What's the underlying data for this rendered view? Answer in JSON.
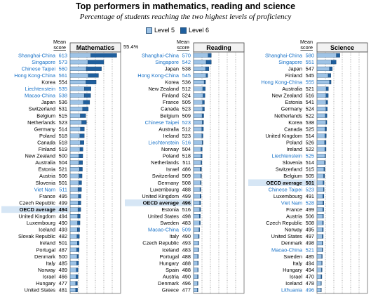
{
  "title": "Top performers in mathematics, reading and science",
  "subtitle": "Percentage of students reaching the two highest levels of proficiency",
  "legend": [
    {
      "label": "Level 5",
      "color": "#9ec3e6"
    },
    {
      "label": "Level 6",
      "color": "#1f5f9e"
    }
  ],
  "mean_header": "Mean score",
  "colors": {
    "level5": "#9ec3e6",
    "level6": "#1f5f9e",
    "highlight_text": "#1a73c8",
    "oecd_fill": "#d6e6f5"
  },
  "chart_data": [
    {
      "type": "bar",
      "title": "Mathematics",
      "annotation": "55.4%",
      "countries": [
        {
          "name": "Shanghai-China",
          "score": 613,
          "l5": 24.6,
          "l6": 30.8,
          "highlight": true
        },
        {
          "name": "Singapore",
          "score": 573,
          "l5": 21.0,
          "l6": 19.0,
          "highlight": true
        },
        {
          "name": "Chinese Taipei",
          "score": 560,
          "l5": 19.2,
          "l6": 18.0,
          "highlight": true
        },
        {
          "name": "Hong Kong-China",
          "score": 561,
          "l5": 21.4,
          "l6": 12.3,
          "highlight": true
        },
        {
          "name": "Korea",
          "score": 554,
          "l5": 18.8,
          "l6": 12.1,
          "highlight": false
        },
        {
          "name": "Liechtenstein",
          "score": 535,
          "l5": 17.0,
          "l6": 7.8,
          "highlight": true
        },
        {
          "name": "Macao-China",
          "score": 538,
          "l5": 16.8,
          "l6": 7.6,
          "highlight": true
        },
        {
          "name": "Japan",
          "score": 536,
          "l5": 15.7,
          "l6": 7.5,
          "highlight": false
        },
        {
          "name": "Switzerland",
          "score": 531,
          "l5": 14.8,
          "l6": 6.8,
          "highlight": false
        },
        {
          "name": "Belgium",
          "score": 515,
          "l5": 12.1,
          "l6": 6.4,
          "highlight": false
        },
        {
          "name": "Netherlands",
          "score": 523,
          "l5": 13.8,
          "l6": 5.5,
          "highlight": false
        },
        {
          "name": "Germany",
          "score": 514,
          "l5": 12.2,
          "l6": 4.7,
          "highlight": false
        },
        {
          "name": "Poland",
          "score": 518,
          "l5": 11.5,
          "l6": 5.3,
          "highlight": false
        },
        {
          "name": "Canada",
          "score": 518,
          "l5": 12.1,
          "l6": 4.3,
          "highlight": false
        },
        {
          "name": "Finland",
          "score": 519,
          "l5": 11.7,
          "l6": 3.5,
          "highlight": false
        },
        {
          "name": "New Zealand",
          "score": 500,
          "l5": 10.5,
          "l6": 4.5,
          "highlight": false
        },
        {
          "name": "Australia",
          "score": 504,
          "l5": 10.5,
          "l6": 4.3,
          "highlight": false
        },
        {
          "name": "Estonia",
          "score": 521,
          "l5": 11.0,
          "l6": 3.6,
          "highlight": false
        },
        {
          "name": "Austria",
          "score": 506,
          "l5": 10.5,
          "l6": 3.7,
          "highlight": false
        },
        {
          "name": "Slovenia",
          "score": 501,
          "l5": 10.3,
          "l6": 3.4,
          "highlight": false
        },
        {
          "name": "Viet Nam",
          "score": 511,
          "l5": 9.3,
          "l6": 4.2,
          "highlight": true
        },
        {
          "name": "France",
          "score": 495,
          "l5": 9.8,
          "l6": 3.1,
          "highlight": false
        },
        {
          "name": "Czech Republic",
          "score": 499,
          "l5": 9.6,
          "l6": 3.2,
          "highlight": false
        },
        {
          "name": "OECD average",
          "score": 494,
          "l5": 9.3,
          "l6": 3.3,
          "highlight": false,
          "oecd": true
        },
        {
          "name": "United Kingdom",
          "score": 494,
          "l5": 8.9,
          "l6": 3.1,
          "highlight": false
        },
        {
          "name": "Luxembourg",
          "score": 490,
          "l5": 8.8,
          "l6": 2.9,
          "highlight": false
        },
        {
          "name": "Iceland",
          "score": 493,
          "l5": 8.5,
          "l6": 2.8,
          "highlight": false
        },
        {
          "name": "Slovak Republic",
          "score": 482,
          "l5": 8.1,
          "l6": 2.9,
          "highlight": false
        },
        {
          "name": "Ireland",
          "score": 501,
          "l5": 8.5,
          "l6": 2.2,
          "highlight": false
        },
        {
          "name": "Portugal",
          "score": 487,
          "l5": 7.8,
          "l6": 2.8,
          "highlight": false
        },
        {
          "name": "Denmark",
          "score": 500,
          "l5": 8.3,
          "l6": 1.7,
          "highlight": false
        },
        {
          "name": "Italy",
          "score": 485,
          "l5": 7.8,
          "l6": 2.2,
          "highlight": false
        },
        {
          "name": "Norway",
          "score": 489,
          "l5": 7.3,
          "l6": 2.1,
          "highlight": false
        },
        {
          "name": "Israel",
          "score": 466,
          "l5": 6.9,
          "l6": 2.5,
          "highlight": false
        },
        {
          "name": "Hungary",
          "score": 477,
          "l5": 6.6,
          "l6": 2.1,
          "highlight": false
        },
        {
          "name": "United States",
          "score": 481,
          "l5": 6.6,
          "l6": 2.2,
          "highlight": false
        }
      ]
    },
    {
      "type": "bar",
      "title": "Reading",
      "countries": [
        {
          "name": "Shanghai-China",
          "score": 570,
          "l5": 17.3,
          "l6": 3.8,
          "highlight": true
        },
        {
          "name": "Singapore",
          "score": 542,
          "l5": 15.0,
          "l6": 6.1,
          "highlight": true
        },
        {
          "name": "Japan",
          "score": 538,
          "l5": 14.3,
          "l6": 3.9,
          "highlight": false
        },
        {
          "name": "Hong Kong-China",
          "score": 545,
          "l5": 14.9,
          "l6": 1.9,
          "highlight": true
        },
        {
          "name": "Korea",
          "score": 536,
          "l5": 12.6,
          "l6": 1.6,
          "highlight": false
        },
        {
          "name": "New Zealand",
          "score": 512,
          "l5": 10.9,
          "l6": 3.0,
          "highlight": false
        },
        {
          "name": "Finland",
          "score": 524,
          "l5": 11.3,
          "l6": 2.2,
          "highlight": false
        },
        {
          "name": "France",
          "score": 505,
          "l5": 10.6,
          "l6": 2.3,
          "highlight": false
        },
        {
          "name": "Canada",
          "score": 523,
          "l5": 10.8,
          "l6": 2.1,
          "highlight": false
        },
        {
          "name": "Belgium",
          "score": 509,
          "l5": 10.1,
          "l6": 2.0,
          "highlight": false
        },
        {
          "name": "Chinese Taipei",
          "score": 523,
          "l5": 10.4,
          "l6": 1.4,
          "highlight": true
        },
        {
          "name": "Australia",
          "score": 512,
          "l5": 9.8,
          "l6": 1.9,
          "highlight": false
        },
        {
          "name": "Ireland",
          "score": 523,
          "l5": 9.9,
          "l6": 1.3,
          "highlight": false
        },
        {
          "name": "Liechtenstein",
          "score": 516,
          "l5": 10.3,
          "l6": 0.9,
          "highlight": true
        },
        {
          "name": "Norway",
          "score": 504,
          "l5": 8.8,
          "l6": 1.5,
          "highlight": false
        },
        {
          "name": "Poland",
          "score": 518,
          "l5": 8.9,
          "l6": 1.3,
          "highlight": false
        },
        {
          "name": "Netherlands",
          "score": 511,
          "l5": 9.0,
          "l6": 0.9,
          "highlight": false
        },
        {
          "name": "Israel",
          "score": 486,
          "l5": 7.9,
          "l6": 1.5,
          "highlight": false
        },
        {
          "name": "Switzerland",
          "score": 509,
          "l5": 8.5,
          "l6": 0.9,
          "highlight": false
        },
        {
          "name": "Germany",
          "score": 508,
          "l5": 8.2,
          "l6": 0.9,
          "highlight": false
        },
        {
          "name": "Luxembourg",
          "score": 488,
          "l5": 7.6,
          "l6": 1.1,
          "highlight": false
        },
        {
          "name": "United Kingdom",
          "score": 499,
          "l5": 7.7,
          "l6": 1.3,
          "highlight": false
        },
        {
          "name": "OECD average",
          "score": 496,
          "l5": 7.3,
          "l6": 1.1,
          "highlight": false,
          "oecd": true
        },
        {
          "name": "Estonia",
          "score": 516,
          "l5": 7.4,
          "l6": 1.0,
          "highlight": false
        },
        {
          "name": "United States",
          "score": 498,
          "l5": 7.0,
          "l6": 1.0,
          "highlight": false
        },
        {
          "name": "Sweden",
          "score": 483,
          "l5": 7.1,
          "l6": 0.9,
          "highlight": false
        },
        {
          "name": "Macao-China",
          "score": 509,
          "l5": 6.6,
          "l6": 0.6,
          "highlight": true
        },
        {
          "name": "Italy",
          "score": 490,
          "l5": 5.9,
          "l6": 0.8,
          "highlight": false
        },
        {
          "name": "Czech Republic",
          "score": 493,
          "l5": 5.5,
          "l6": 0.6,
          "highlight": false
        },
        {
          "name": "Iceland",
          "score": 483,
          "l5": 5.3,
          "l6": 0.6,
          "highlight": false
        },
        {
          "name": "Portugal",
          "score": 488,
          "l5": 5.0,
          "l6": 0.7,
          "highlight": false
        },
        {
          "name": "Hungary",
          "score": 488,
          "l5": 5.0,
          "l6": 0.6,
          "highlight": false
        },
        {
          "name": "Spain",
          "score": 488,
          "l5": 5.0,
          "l6": 0.5,
          "highlight": false
        },
        {
          "name": "Austria",
          "score": 490,
          "l5": 4.8,
          "l6": 0.7,
          "highlight": false
        },
        {
          "name": "Denmark",
          "score": 496,
          "l5": 4.7,
          "l6": 0.6,
          "highlight": false
        },
        {
          "name": "Greece",
          "score": 477,
          "l5": 4.6,
          "l6": 0.6,
          "highlight": false
        }
      ]
    },
    {
      "type": "bar",
      "title": "Science",
      "countries": [
        {
          "name": "Shanghai-China",
          "score": 580,
          "l5": 23.0,
          "l6": 4.2,
          "highlight": true
        },
        {
          "name": "Singapore",
          "score": 551,
          "l5": 16.9,
          "l6": 5.8,
          "highlight": true
        },
        {
          "name": "Japan",
          "score": 547,
          "l5": 14.8,
          "l6": 3.4,
          "highlight": false
        },
        {
          "name": "Finland",
          "score": 545,
          "l5": 13.3,
          "l6": 3.2,
          "highlight": false
        },
        {
          "name": "Hong Kong-China",
          "score": 555,
          "l5": 14.9,
          "l6": 1.8,
          "highlight": true
        },
        {
          "name": "Australia",
          "score": 521,
          "l5": 10.9,
          "l6": 2.6,
          "highlight": false
        },
        {
          "name": "New Zealand",
          "score": 516,
          "l5": 10.7,
          "l6": 2.7,
          "highlight": false
        },
        {
          "name": "Estonia",
          "score": 541,
          "l5": 10.8,
          "l6": 1.9,
          "highlight": false
        },
        {
          "name": "Germany",
          "score": 524,
          "l5": 10.6,
          "l6": 1.6,
          "highlight": false
        },
        {
          "name": "Netherlands",
          "score": 522,
          "l5": 9.9,
          "l6": 1.9,
          "highlight": false
        },
        {
          "name": "Korea",
          "score": 538,
          "l5": 10.6,
          "l6": 1.1,
          "highlight": false
        },
        {
          "name": "Canada",
          "score": 525,
          "l5": 9.5,
          "l6": 1.8,
          "highlight": false
        },
        {
          "name": "United Kingdom",
          "score": 514,
          "l5": 9.3,
          "l6": 1.8,
          "highlight": false
        },
        {
          "name": "Poland",
          "score": 526,
          "l5": 9.1,
          "l6": 1.7,
          "highlight": false
        },
        {
          "name": "Ireland",
          "score": 522,
          "l5": 9.3,
          "l6": 1.5,
          "highlight": false
        },
        {
          "name": "Liechtenstein",
          "score": 525,
          "l5": 9.4,
          "l6": 0.9,
          "highlight": true
        },
        {
          "name": "Slovenia",
          "score": 514,
          "l5": 8.9,
          "l6": 1.1,
          "highlight": false
        },
        {
          "name": "Switzerland",
          "score": 515,
          "l5": 8.3,
          "l6": 1.0,
          "highlight": false
        },
        {
          "name": "Belgium",
          "score": 505,
          "l5": 7.9,
          "l6": 1.1,
          "highlight": false
        },
        {
          "name": "OECD average",
          "score": 501,
          "l5": 7.2,
          "l6": 1.2,
          "highlight": false,
          "oecd": true
        },
        {
          "name": "Chinese Taipei",
          "score": 523,
          "l5": 7.8,
          "l6": 0.6,
          "highlight": true
        },
        {
          "name": "Luxembourg",
          "score": 491,
          "l5": 7.0,
          "l6": 1.2,
          "highlight": false
        },
        {
          "name": "Viet Nam",
          "score": 528,
          "l5": 7.1,
          "l6": 1.0,
          "highlight": true
        },
        {
          "name": "France",
          "score": 499,
          "l5": 6.9,
          "l6": 1.1,
          "highlight": false
        },
        {
          "name": "Austria",
          "score": 506,
          "l5": 6.9,
          "l6": 0.8,
          "highlight": false
        },
        {
          "name": "Czech Republic",
          "score": 508,
          "l5": 6.7,
          "l6": 0.9,
          "highlight": false
        },
        {
          "name": "Norway",
          "score": 495,
          "l5": 6.5,
          "l6": 1.0,
          "highlight": false
        },
        {
          "name": "United States",
          "score": 497,
          "l5": 6.3,
          "l6": 1.1,
          "highlight": false
        },
        {
          "name": "Denmark",
          "score": 498,
          "l5": 6.1,
          "l6": 0.7,
          "highlight": false
        },
        {
          "name": "Macao-China",
          "score": 521,
          "l5": 6.2,
          "l6": 0.6,
          "highlight": true
        },
        {
          "name": "Sweden",
          "score": 485,
          "l5": 5.6,
          "l6": 0.7,
          "highlight": false
        },
        {
          "name": "Italy",
          "score": 494,
          "l5": 5.6,
          "l6": 0.6,
          "highlight": false
        },
        {
          "name": "Hungary",
          "score": 494,
          "l5": 5.4,
          "l6": 0.6,
          "highlight": false
        },
        {
          "name": "Israel",
          "score": 470,
          "l5": 4.9,
          "l6": 0.9,
          "highlight": false
        },
        {
          "name": "Iceland",
          "score": 478,
          "l5": 4.8,
          "l6": 0.5,
          "highlight": false
        },
        {
          "name": "Lithuania",
          "score": 496,
          "l5": 4.8,
          "l6": 0.4,
          "highlight": true
        }
      ]
    }
  ]
}
